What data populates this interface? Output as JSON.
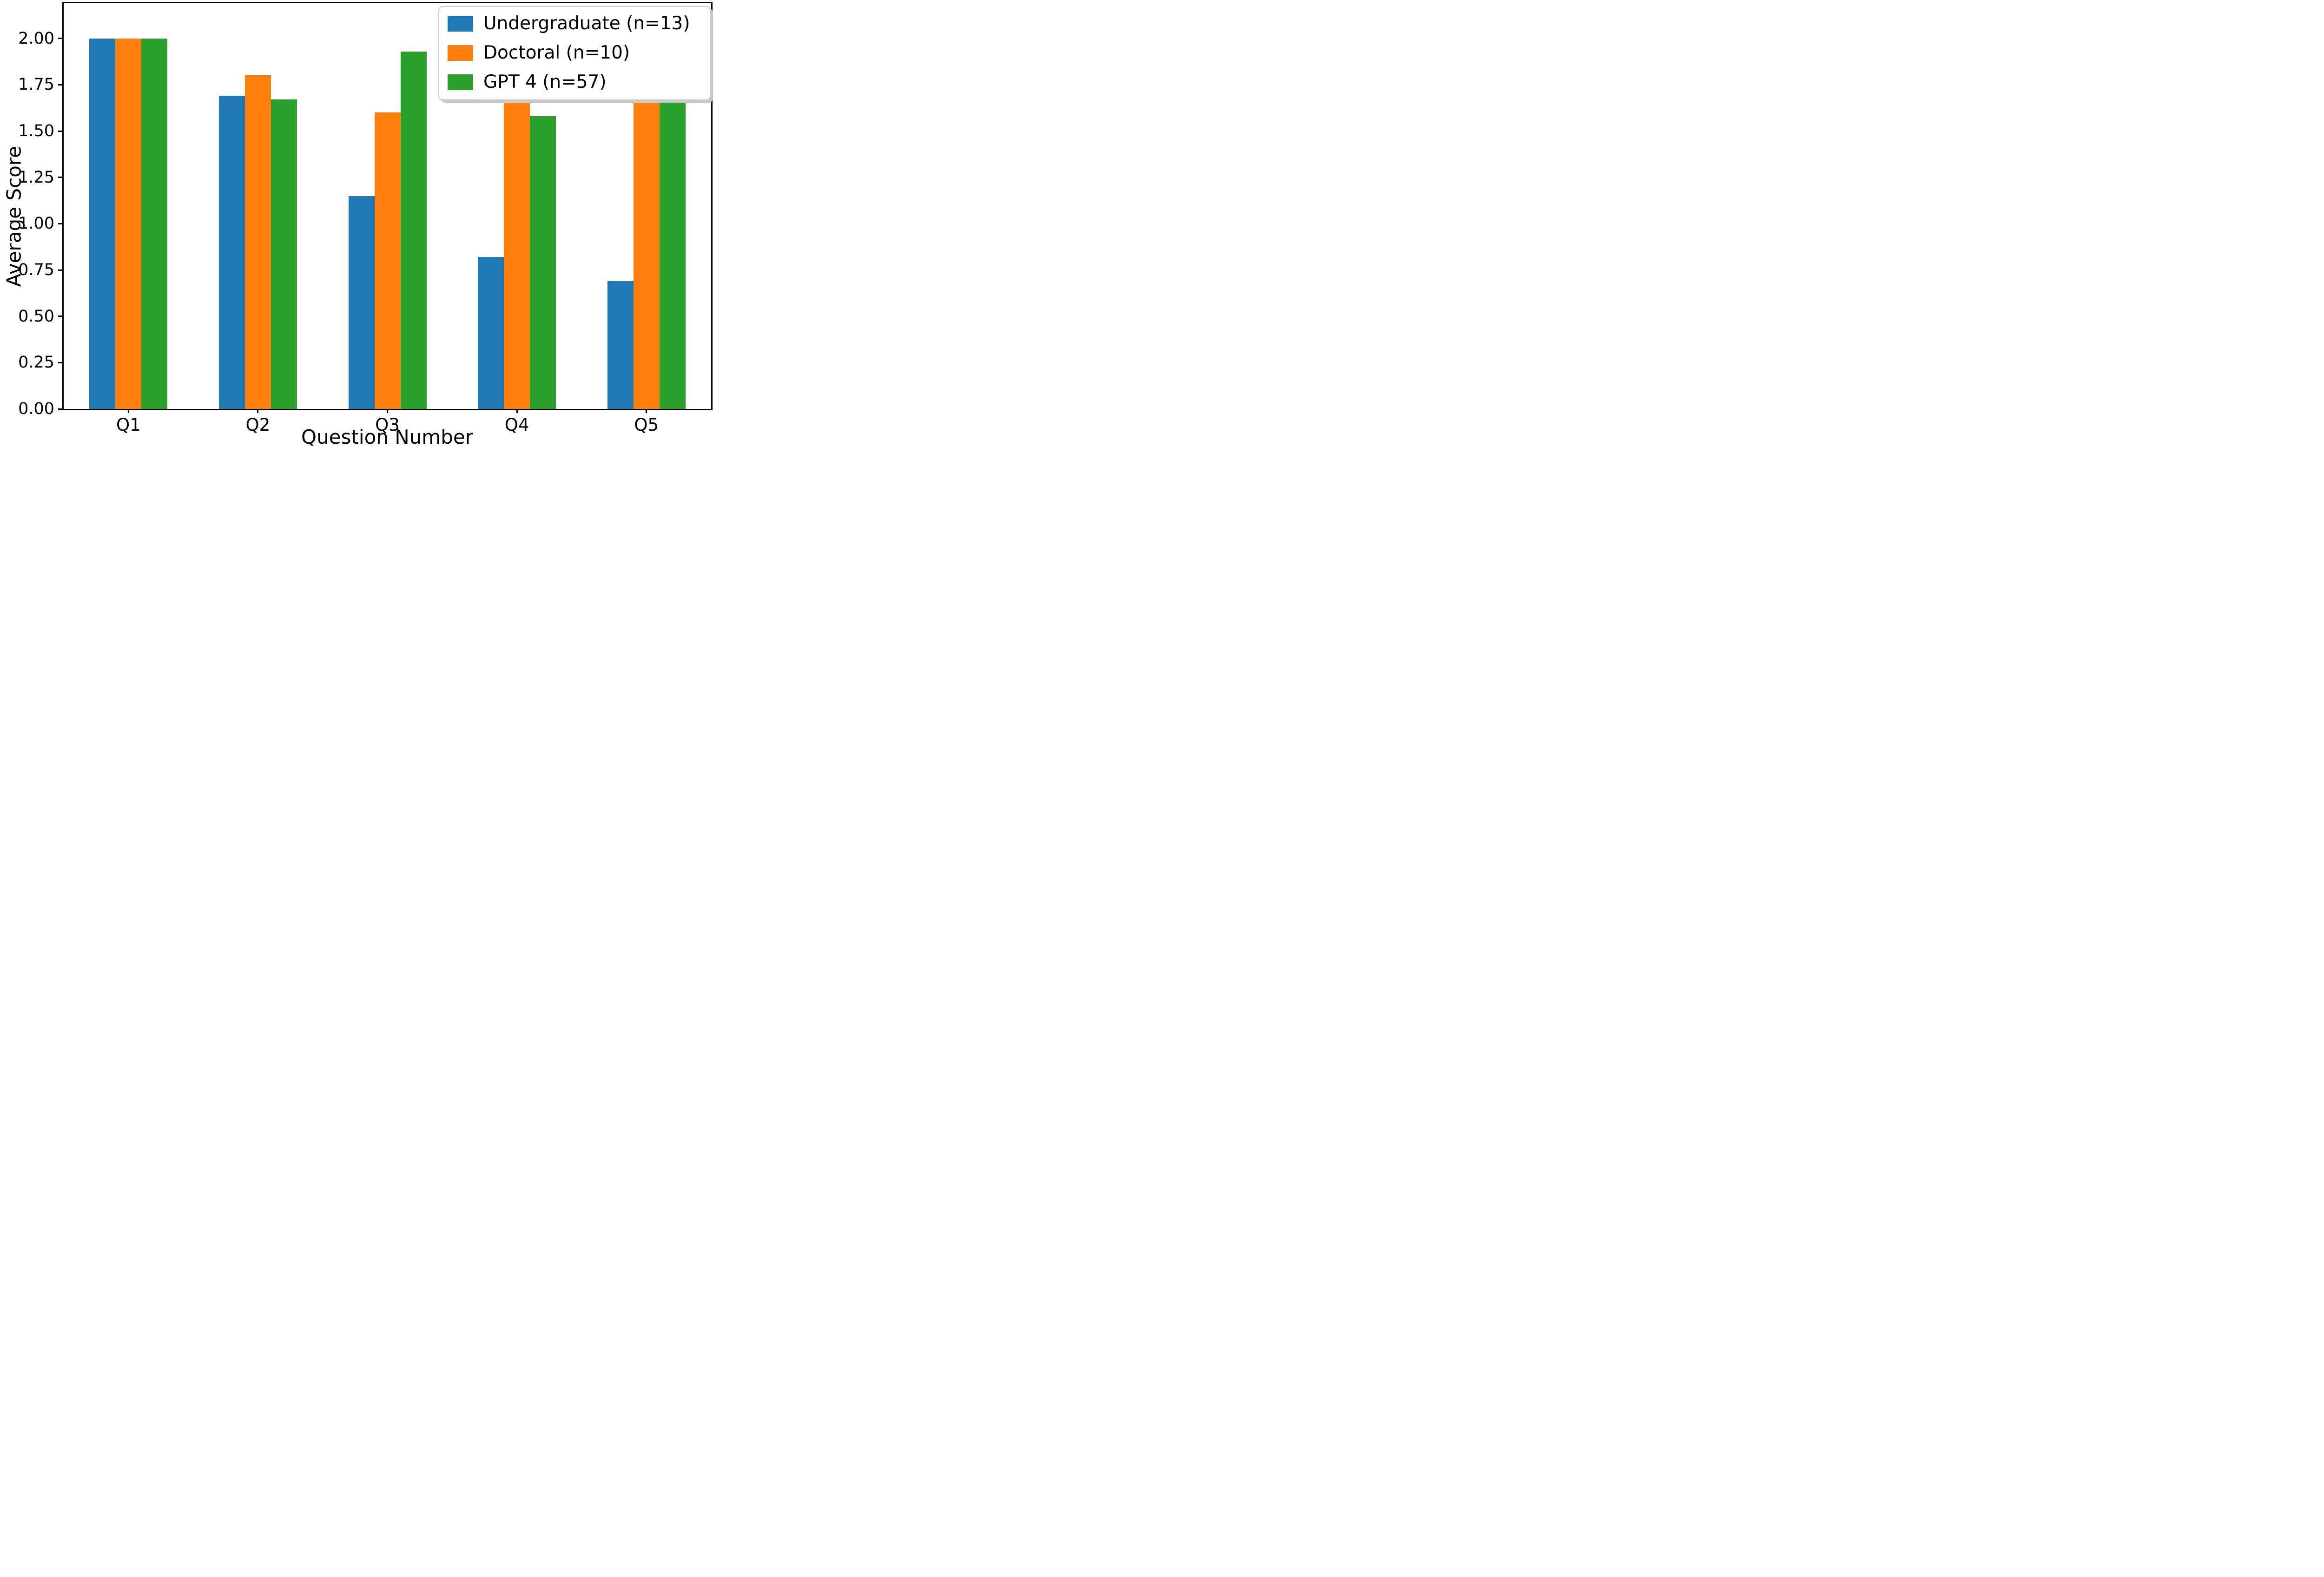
{
  "chart_data": {
    "type": "bar",
    "title": "",
    "xlabel": "Question Number",
    "ylabel": "Average Score",
    "categories": [
      "Q1",
      "Q2",
      "Q3",
      "Q4",
      "Q5"
    ],
    "series": [
      {
        "name": "Undergraduate (n=13)",
        "color": "#1f77b4",
        "values": [
          2.0,
          1.69,
          1.15,
          0.82,
          0.69
        ]
      },
      {
        "name": "Doctoral (n=10)",
        "color": "#ff7f0e",
        "values": [
          2.0,
          1.8,
          1.6,
          1.67,
          1.7
        ]
      },
      {
        "name": "GPT 4 (n=57)",
        "color": "#2ca02c",
        "values": [
          2.0,
          1.67,
          1.93,
          1.58,
          1.67
        ]
      }
    ],
    "y_ticks": [
      "0.00",
      "0.25",
      "0.50",
      "0.75",
      "1.00",
      "1.25",
      "1.50",
      "1.75",
      "2.00"
    ],
    "ylim": [
      0,
      2.19
    ],
    "grid": false,
    "legend_position": "upper right",
    "spine_color": "#000000",
    "background_color": "#ffffff"
  }
}
